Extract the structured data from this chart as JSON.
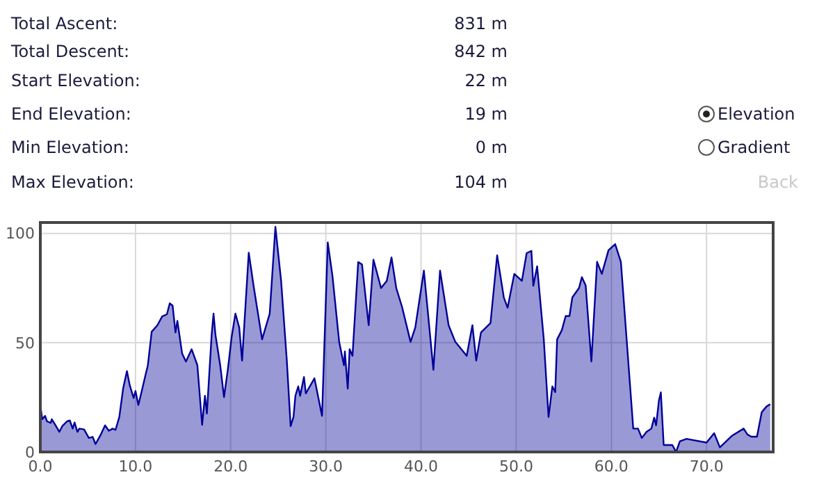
{
  "chart_data": {
    "type": "area",
    "annotations": [
      "Total Ascent:",
      "831 m",
      "Total Descent:",
      "842 m",
      "Start Elevation:",
      "22 m",
      "End Elevation:",
      "19 m",
      "Min Elevation:",
      "0 m",
      "Max Elevation:",
      "104 m",
      "Elevation",
      "Gradient",
      "Back"
    ],
    "xlim": [
      0,
      77
    ],
    "xticks": [
      {
        "value": 0,
        "label": "0.0"
      },
      {
        "value": 10,
        "label": "10.0"
      },
      {
        "value": 20,
        "label": "20.0"
      },
      {
        "value": 30,
        "label": "30.0"
      },
      {
        "value": 40,
        "label": "40.0"
      },
      {
        "value": 50,
        "label": "50.0"
      },
      {
        "value": 60,
        "label": "60.0"
      },
      {
        "value": 70,
        "label": "70.0"
      }
    ],
    "ylim": [
      0,
      105
    ],
    "yticks": [
      0,
      50,
      100
    ],
    "grid": true,
    "series": [
      {
        "color": "#000099",
        "x": [
          0,
          0.2,
          0.5,
          0.7,
          1.1,
          1.2,
          1.5,
          2.0,
          2.3,
          2.8,
          3.1,
          3.4,
          3.6,
          3.9,
          4.1,
          4.6,
          5.1,
          5.5,
          5.8,
          6.3,
          6.8,
          7.2,
          7.6,
          7.9,
          8.3,
          8.7,
          9.1,
          9.4,
          9.8,
          10.0,
          10.3,
          10.6,
          11.0,
          11.3,
          11.7,
          12.3,
          12.8,
          13.3,
          13.6,
          13.9,
          14.2,
          14.4,
          14.9,
          15.3,
          15.9,
          16.5,
          17.0,
          17.3,
          17.5,
          18.0,
          18.2,
          18.4,
          18.9,
          19.3,
          19.7,
          20.1,
          20.5,
          20.9,
          21.2,
          21.9,
          22.4,
          23.3,
          24.1,
          24.7,
          25.3,
          25.9,
          26.3,
          26.6,
          26.8,
          27.1,
          27.3,
          27.7,
          27.9,
          28.8,
          29.6,
          30.2,
          30.7,
          31.4,
          31.9,
          32.0,
          32.3,
          32.5,
          32.8,
          33.4,
          33.8,
          34.5,
          35.0,
          35.8,
          36.4,
          36.9,
          37.4,
          38.0,
          38.9,
          39.4,
          40.3,
          41.3,
          42.0,
          42.9,
          43.6,
          44.8,
          45.4,
          45.8,
          46.3,
          47.3,
          48.0,
          48.7,
          49.1,
          49.8,
          50.6,
          51.1,
          51.6,
          51.8,
          52.2,
          52.9,
          53.4,
          53.8,
          54.1,
          54.3,
          54.8,
          55.2,
          55.6,
          55.9,
          56.6,
          56.9,
          57.3,
          57.9,
          58.5,
          59.0,
          59.7,
          60.4,
          61.0,
          62.3,
          62.8,
          63.2,
          63.7,
          64.2,
          64.5,
          64.7,
          65.0,
          65.2,
          65.5,
          66.4,
          66.8,
          67.2,
          67.9,
          70.0,
          70.8,
          71.4,
          72.7,
          73.9,
          74.3,
          74.7,
          75.3,
          75.8,
          76.3,
          76.7
        ],
        "values": [
          21.5,
          15,
          16.5,
          14,
          13.3,
          15,
          12.9,
          9.2,
          11.8,
          14,
          14.4,
          10.7,
          13.5,
          9.2,
          10.7,
          10.3,
          6.4,
          6.9,
          3.6,
          7.5,
          12.2,
          9.7,
          10.7,
          10.1,
          16,
          29,
          37,
          30.5,
          24.7,
          27.9,
          21.5,
          26.8,
          34.3,
          39.7,
          55,
          58,
          62,
          63,
          68,
          67,
          54.7,
          60,
          45,
          41.4,
          47,
          39.7,
          12.4,
          25.7,
          17.6,
          53.6,
          63.3,
          53.6,
          39.7,
          25.1,
          37.6,
          52.6,
          63.3,
          56.9,
          41.8,
          91.2,
          76.2,
          51.5,
          63.3,
          103,
          78.3,
          41.8,
          11.8,
          16,
          25.7,
          30,
          25.7,
          34.3,
          26.8,
          33.7,
          16.5,
          95.9,
          80.4,
          50.4,
          39.7,
          46,
          29,
          47,
          44,
          86.9,
          85.8,
          58,
          88,
          75,
          78.3,
          89,
          75,
          66.5,
          50.4,
          57,
          83,
          37.6,
          83,
          58,
          50.4,
          44,
          58,
          41.8,
          54.7,
          59,
          90,
          70.7,
          66,
          81.5,
          78.3,
          91,
          92,
          76,
          85,
          51.5,
          16,
          30,
          27.4,
          51.5,
          55.8,
          62.2,
          62.2,
          70.7,
          75,
          80,
          76.2,
          41.4,
          87,
          81.5,
          92.3,
          95.1,
          87,
          10.7,
          10.7,
          6.4,
          9.2,
          10.7,
          15.7,
          12.2,
          23.6,
          27.3,
          3.2,
          3.2,
          0,
          4.9,
          6,
          4.3,
          8.6,
          2.1,
          7.5,
          10.7,
          8,
          7,
          7,
          18.2,
          20.8,
          21.9
        ]
      }
    ]
  }
}
